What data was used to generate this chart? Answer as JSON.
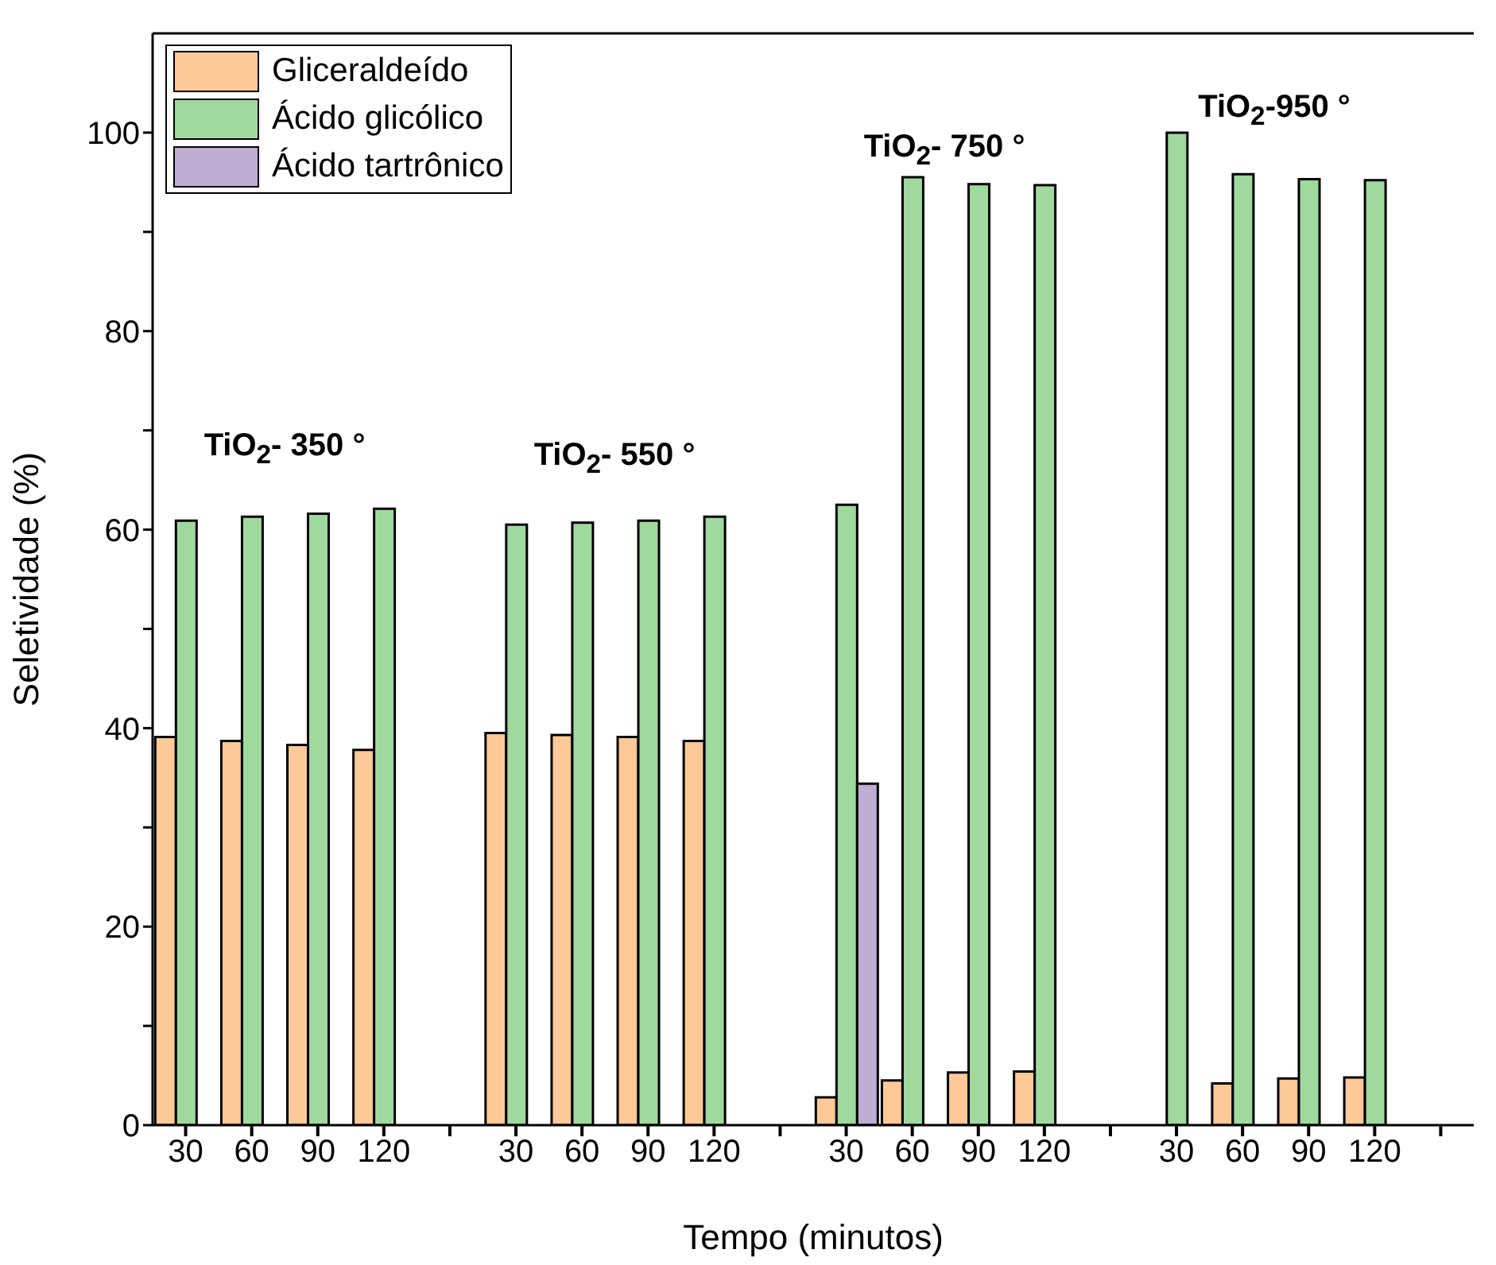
{
  "chart_data": {
    "type": "bar",
    "xlabel": "Tempo (minutos)",
    "ylabel": "Seletividade (%)",
    "categories": [
      "30",
      "60",
      "90",
      "120",
      null,
      "30",
      "60",
      "90",
      "120",
      null,
      "30",
      "60",
      "90",
      "120",
      null,
      "30",
      "60",
      "90",
      "120",
      null
    ],
    "series": [
      {
        "name": "Gliceraldeído",
        "color": "#fdc998",
        "values": [
          39.1,
          38.7,
          38.3,
          37.8,
          null,
          39.5,
          39.3,
          39.1,
          38.7,
          null,
          2.8,
          4.5,
          5.3,
          5.4,
          null,
          null,
          4.2,
          4.7,
          4.8,
          null
        ]
      },
      {
        "name": "Ácido glicólico",
        "color": "#a0d99e",
        "values": [
          60.9,
          61.3,
          61.6,
          62.1,
          null,
          60.5,
          60.7,
          60.9,
          61.3,
          null,
          62.5,
          95.5,
          94.8,
          94.7,
          null,
          100,
          95.8,
          95.3,
          95.2,
          null
        ]
      },
      {
        "name": "Ácido tartrônico",
        "color": "#beaed4",
        "values": [
          null,
          null,
          null,
          null,
          null,
          null,
          null,
          null,
          null,
          null,
          34.4,
          null,
          null,
          null,
          null,
          null,
          null,
          null,
          null,
          null
        ]
      }
    ],
    "ylim": [
      0,
      110
    ],
    "yticks": [
      0,
      {
        "value": 10,
        "label": null
      },
      20,
      {
        "value": 30,
        "label": null
      },
      40,
      {
        "value": 50,
        "label": null
      },
      60,
      {
        "value": 70,
        "label": null
      },
      80,
      {
        "value": 90,
        "label": null
      },
      100
    ],
    "annotations": [
      "TiO$_{2}$- 350 °",
      "TiO$_{2}$- 550 °",
      "TiO$_{2}$- 750 °",
      "TiO$_{2}$-950 °"
    ],
    "legend": "top left",
    "grid": false
  }
}
